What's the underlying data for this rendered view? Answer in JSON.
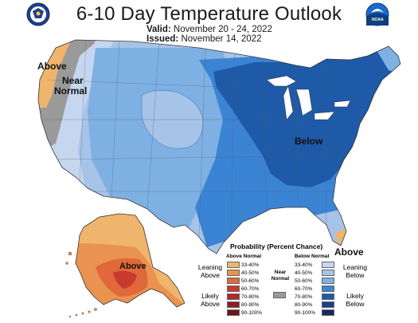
{
  "title": "6-10 Day Temperature Outlook",
  "valid_label": "Valid:",
  "valid_value": "November 20 - 24, 2022",
  "issued_label": "Issued:",
  "issued_value": "November 14, 2022",
  "logos": {
    "left": "commerce-seal",
    "right": "noaa-logo",
    "right_text": "NOAA"
  },
  "map_labels": {
    "above_west": "Above",
    "near_normal_1": "Near",
    "near_normal_2": "Normal",
    "below_east": "Below",
    "above_florida": "Above",
    "above_alaska": "Above"
  },
  "legend": {
    "title": "Probability (Percent Chance)",
    "above_header": "Above Normal",
    "below_header": "Below Normal",
    "near_header_1": "Near",
    "near_header_2": "Normal",
    "leaning_above_1": "Leaning",
    "leaning_above_2": "Above",
    "likely_above_1": "Likely",
    "likely_above_2": "Above",
    "leaning_below_1": "Leaning",
    "leaning_below_2": "Below",
    "likely_below_1": "Likely",
    "likely_below_2": "Below",
    "above_ranges": [
      "33-40%",
      "40-50%",
      "50-60%",
      "60-70%",
      "70-80%",
      "80-90%",
      "90-100%"
    ],
    "below_ranges": [
      "33-40%",
      "40-50%",
      "50-60%",
      "60-70%",
      "70-80%",
      "80-90%",
      "90-100%"
    ],
    "above_colors": [
      "#f0b56c",
      "#ea9350",
      "#e0683a",
      "#c8392e",
      "#b3262d",
      "#8e1d24",
      "#6a1518"
    ],
    "below_colors": [
      "#c6d6ee",
      "#a6c4e8",
      "#7fb0e3",
      "#3b84d4",
      "#1e5aa8",
      "#1b3f8a",
      "#16285e"
    ],
    "near_color": "#9a9a9a"
  }
}
